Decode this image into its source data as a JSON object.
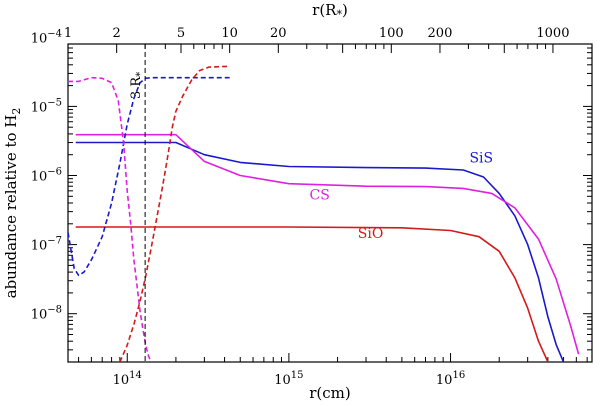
{
  "chart_data": {
    "type": "line",
    "title": "",
    "xlabel": "r(cm)",
    "ylabel": "abundance relative to H",
    "ylabel_sub": "2",
    "x_scale": "log",
    "y_scale": "log",
    "xlim": [
      43000000000000.0,
      7.5e+16
    ],
    "ylim": [
      2e-09,
      8e-05
    ],
    "x_ticks": [
      {
        "value": 100000000000000.0,
        "mantissa": "10",
        "exp": "14"
      },
      {
        "value": 1000000000000000.0,
        "mantissa": "10",
        "exp": "15"
      },
      {
        "value": 1e+16,
        "mantissa": "10",
        "exp": "16"
      }
    ],
    "y_ticks": [
      {
        "value": 1e-08,
        "mantissa": "10",
        "exp": "−8"
      },
      {
        "value": 1e-07,
        "mantissa": "10",
        "exp": "−7"
      },
      {
        "value": 1e-06,
        "mantissa": "10",
        "exp": "−6"
      },
      {
        "value": 1e-05,
        "mantissa": "10",
        "exp": "−5"
      },
      {
        "value": 0.0001,
        "mantissa": "10",
        "exp": "−4"
      }
    ],
    "top_axis": {
      "label": "r(R",
      "label_sub": "*",
      "label_close": ")",
      "r_star_cm": 43000000000000.0,
      "ticks": [
        {
          "value": 1,
          "label": "1"
        },
        {
          "value": 2,
          "label": "2"
        },
        {
          "value": 5,
          "label": "5"
        },
        {
          "value": 10,
          "label": "10"
        },
        {
          "value": 20,
          "label": "20"
        },
        {
          "value": 100,
          "label": "100"
        },
        {
          "value": 200,
          "label": "200"
        },
        {
          "value": 1000,
          "label": "1000"
        }
      ]
    },
    "marker": {
      "x": 129000000000000.0,
      "label": "3 R",
      "label_sub": "*"
    },
    "series": [
      {
        "name": "SiS",
        "color": "#1a1acc",
        "style": "solid",
        "label_at": [
          1.55e+16,
          1.55e-06
        ],
        "x": [
          48000000000000.0,
          200000000000000.0,
          300000000000000.0,
          500000000000000.0,
          1000000000000000.0,
          3000000000000000.0,
          7000000000000000.0,
          1.2e+16,
          1.6e+16,
          2e+16,
          2.5e+16,
          3e+16,
          3.5e+16,
          4e+16,
          4.5e+16,
          5e+16
        ],
        "values": [
          3e-06,
          3e-06,
          2e-06,
          1.55e-06,
          1.35e-06,
          1.3e-06,
          1.28e-06,
          1.2e-06,
          9.5e-07,
          5.5e-07,
          2.6e-07,
          1e-07,
          3.3e-08,
          9e-09,
          3.6e-09,
          2e-09
        ]
      },
      {
        "name": "CS",
        "color": "#e020e0",
        "style": "solid",
        "label_at": [
          1550000000000000.0,
          4.5e-07
        ],
        "x": [
          48000000000000.0,
          200000000000000.0,
          300000000000000.0,
          500000000000000.0,
          1000000000000000.0,
          3000000000000000.0,
          7000000000000000.0,
          1.2e+16,
          1.8e+16,
          2.5e+16,
          3.5e+16,
          4.5e+16,
          5.5e+16,
          6.2e+16
        ],
        "values": [
          3.9e-06,
          3.9e-06,
          1.6e-06,
          1e-06,
          7.6e-07,
          7e-07,
          6.9e-07,
          6.5e-07,
          5.5e-07,
          3.4e-07,
          1.2e-07,
          3.2e-08,
          7e-09,
          2.6e-09
        ]
      },
      {
        "name": "SiO",
        "color": "#d41a1a",
        "style": "solid",
        "label_at": [
          3200000000000000.0,
          1.25e-07
        ],
        "x": [
          48000000000000.0,
          1000000000000000.0,
          5000000000000000.0,
          1e+16,
          1.5e+16,
          2e+16,
          2.5e+16,
          3e+16,
          3.5e+16,
          4e+16
        ],
        "values": [
          1.8e-07,
          1.8e-07,
          1.75e-07,
          1.6e-07,
          1.3e-07,
          8e-08,
          3.3e-08,
          1.2e-08,
          4e-09,
          2e-09
        ]
      },
      {
        "name": "SiS (inner)",
        "color": "#1a1acc",
        "style": "dashed",
        "label_at": null,
        "x": [
          43000000000000.0,
          47000000000000.0,
          50000000000000.0,
          54000000000000.0,
          60000000000000.0,
          70000000000000.0,
          80000000000000.0,
          90000000000000.0,
          100000000000000.0,
          110000000000000.0,
          120000000000000.0,
          130000000000000.0,
          140000000000000.0,
          160000000000000.0,
          200000000000000.0,
          430000000000000.0
        ],
        "values": [
          1.5e-07,
          4.5e-08,
          3.6e-08,
          4e-08,
          6e-08,
          1.3e-07,
          4e-07,
          1.5e-06,
          5.5e-06,
          1.3e-05,
          2.2e-05,
          2.55e-05,
          2.6e-05,
          2.6e-05,
          2.6e-05,
          2.6e-05
        ]
      },
      {
        "name": "CS (inner)",
        "color": "#e020e0",
        "style": "dashed",
        "label_at": null,
        "x": [
          43000000000000.0,
          50000000000000.0,
          60000000000000.0,
          70000000000000.0,
          80000000000000.0,
          88000000000000.0,
          95000000000000.0,
          100000000000000.0,
          105000000000000.0,
          110000000000000.0,
          115000000000000.0,
          120000000000000.0,
          125000000000000.0,
          130000000000000.0,
          135000000000000.0,
          140000000000000.0
        ],
        "values": [
          2.3e-05,
          2.3e-05,
          2.6e-05,
          2.55e-05,
          2.2e-05,
          1.2e-05,
          3e-06,
          6e-07,
          2e-07,
          6e-08,
          2.5e-08,
          1.1e-08,
          6e-09,
          3.5e-09,
          2.5e-09,
          2e-09
        ]
      },
      {
        "name": "SiO (inner)",
        "color": "#d41a1a",
        "style": "dashed",
        "label_at": null,
        "x": [
          90000000000000.0,
          100000000000000.0,
          110000000000000.0,
          120000000000000.0,
          130000000000000.0,
          140000000000000.0,
          150000000000000.0,
          160000000000000.0,
          170000000000000.0,
          180000000000000.0,
          190000000000000.0,
          200000000000000.0,
          220000000000000.0,
          250000000000000.0,
          280000000000000.0,
          320000000000000.0,
          430000000000000.0
        ],
        "values": [
          2e-09,
          3.5e-09,
          7e-09,
          1.5e-08,
          3.5e-08,
          8.5e-08,
          2e-07,
          4.5e-07,
          1e-06,
          2.2e-06,
          5e-06,
          8.5e-06,
          1.4e-05,
          2.4e-05,
          3.3e-05,
          3.7e-05,
          3.8e-05
        ]
      }
    ]
  }
}
